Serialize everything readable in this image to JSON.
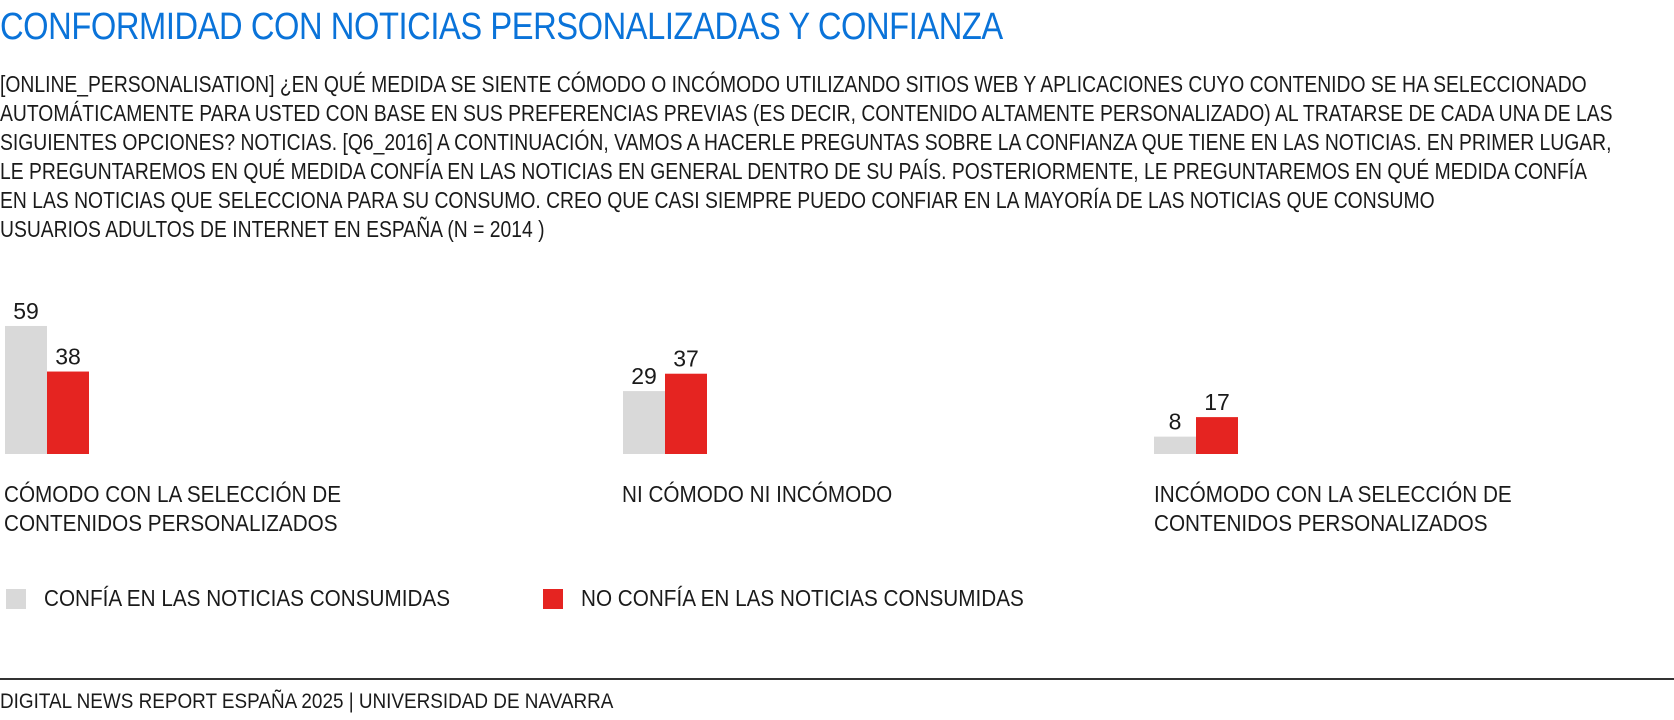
{
  "header": {
    "title": "CONFORMIDAD CON NOTICIAS PERSONALIZADAS Y CONFIANZA",
    "question": "[ONLINE_PERSONALISATION] ¿EN QUÉ MEDIDA SE SIENTE CÓMODO O INCÓMODO UTILIZANDO SITIOS WEB Y APLICACIONES CUYO CONTENIDO SE HA SELECCIONADO AUTOMÁTICAMENTE PARA USTED CON BASE EN SUS PREFERENCIAS PREVIAS (ES DECIR, CONTENIDO ALTAMENTE PERSONALIZADO) AL TRATARSE DE CADA UNA DE LAS SIGUIENTES OPCIONES? NOTICIAS. [Q6_2016] A CONTINUACIÓN, VAMOS A HACERLE PREGUNTAS SOBRE LA CONFIANZA QUE TIENE EN LAS NOTICIAS. EN PRIMER LUGAR, LE PREGUNTAREMOS EN QUÉ MEDIDA CONFÍA EN LAS NOTICIAS EN GENERAL DENTRO DE SU PAÍS. POSTERIORMENTE, LE PREGUNTAREMOS EN QUÉ MEDIDA CONFÍA EN LAS NOTICIAS QUE SELECCIONA PARA SU CONSUMO. CREO QUE CASI SIEMPRE PUEDO CONFIAR EN LA MAYORÍA DE LAS NOTICIAS QUE CONSUMO",
    "base": "USUARIOS ADULTOS DE INTERNET EN ESPAÑA (N = 2014 )"
  },
  "chart_data": {
    "type": "bar",
    "categories": [
      "CÓMODO CON LA SELECCIÓN DE CONTENIDOS PERSONALIZADOS",
      "NI CÓMODO NI INCÓMODO",
      "INCÓMODO CON LA SELECCIÓN DE CONTENIDOS PERSONALIZADOS"
    ],
    "series": [
      {
        "name": "CONFÍA EN LAS NOTICIAS CONSUMIDAS",
        "values": [
          59,
          29,
          8
        ],
        "color": "#d9d9d9"
      },
      {
        "name": "NO CONFÍA EN LAS NOTICIAS CONSUMIDAS",
        "values": [
          38,
          37,
          17
        ],
        "color": "#e52421"
      }
    ],
    "ylim": [
      0,
      60
    ],
    "grid": false,
    "legend_position": "bottom-left",
    "data_labels": true
  },
  "footer": {
    "source": "DIGITAL NEWS REPORT ESPAÑA 2025 | UNIVERSIDAD DE NAVARRA"
  }
}
